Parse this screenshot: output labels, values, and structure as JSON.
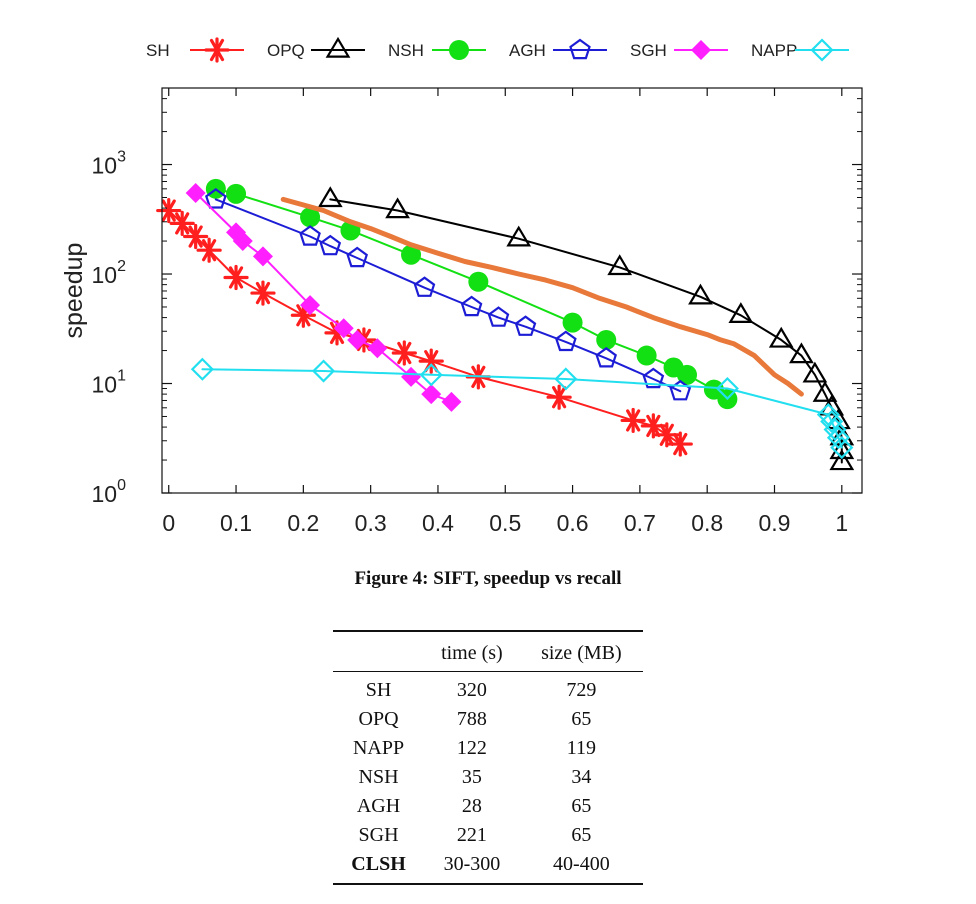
{
  "chart_data": {
    "type": "line",
    "xlabel": "",
    "ylabel": "speedup",
    "xlim": [
      -0.01,
      1.03
    ],
    "ylim": [
      1,
      5000
    ],
    "yscale": "log",
    "x_ticks": [
      "0",
      "0.1",
      "0.2",
      "0.3",
      "0.4",
      "0.5",
      "0.6",
      "0.7",
      "0.8",
      "0.9",
      "1"
    ],
    "y_ticks": [
      {
        "base": "10",
        "exp": "0"
      },
      {
        "base": "10",
        "exp": "1"
      },
      {
        "base": "10",
        "exp": "2"
      },
      {
        "base": "10",
        "exp": "3"
      }
    ],
    "legend_position": "top",
    "grid": false,
    "series": [
      {
        "name": "SH",
        "color": "#ff1f1f",
        "marker": "asterisk",
        "x": [
          0.0,
          0.02,
          0.04,
          0.06,
          0.1,
          0.14,
          0.2,
          0.25,
          0.29,
          0.35,
          0.39,
          0.46,
          0.58,
          0.69,
          0.72,
          0.74,
          0.76
        ],
        "y": [
          380,
          290,
          220,
          165,
          93,
          67,
          42,
          29,
          25,
          19,
          16,
          11.5,
          7.5,
          4.6,
          4.1,
          3.4,
          2.8
        ]
      },
      {
        "name": "OPQ",
        "color": "#000000",
        "marker": "triangle",
        "x": [
          0.24,
          0.34,
          0.52,
          0.67,
          0.79,
          0.85,
          0.91,
          0.94,
          0.96,
          0.975,
          0.985,
          0.995,
          1.0,
          1.0,
          1.0
        ],
        "y": [
          480,
          380,
          210,
          115,
          62,
          42,
          25,
          18,
          12,
          8,
          6,
          4.5,
          3.2,
          2.4,
          1.9
        ]
      },
      {
        "name": "NSH",
        "color": "#13e013",
        "marker": "circle",
        "x": [
          0.07,
          0.1,
          0.21,
          0.27,
          0.36,
          0.46,
          0.6,
          0.65,
          0.71,
          0.75,
          0.77,
          0.81,
          0.83
        ],
        "y": [
          600,
          540,
          330,
          250,
          150,
          85,
          36,
          25,
          18,
          14,
          12,
          8.8,
          7.2
        ]
      },
      {
        "name": "AGH",
        "color": "#1d1dd6",
        "marker": "pentagon",
        "x": [
          0.07,
          0.21,
          0.24,
          0.28,
          0.38,
          0.45,
          0.49,
          0.53,
          0.59,
          0.65,
          0.72,
          0.76
        ],
        "y": [
          480,
          220,
          180,
          140,
          75,
          50,
          40,
          33,
          24,
          17,
          11,
          8.5
        ]
      },
      {
        "name": "SGH",
        "color": "#ff1fff",
        "marker": "diamond",
        "x": [
          0.04,
          0.1,
          0.11,
          0.14,
          0.21,
          0.26,
          0.28,
          0.31,
          0.36,
          0.39,
          0.42
        ],
        "y": [
          550,
          240,
          200,
          145,
          52,
          32,
          25,
          21,
          11.5,
          8,
          6.8
        ]
      },
      {
        "name": "NAPP",
        "color": "#22dfef",
        "marker": "diamond-open",
        "x": [
          0.05,
          0.23,
          0.39,
          0.59,
          0.83,
          0.98,
          0.985,
          0.99,
          0.995,
          1.0
        ],
        "y": [
          13.5,
          13,
          12,
          11,
          9,
          5.2,
          4.5,
          3.8,
          3.2,
          2.6
        ]
      },
      {
        "name": "",
        "color": "#e8793a",
        "marker": "none",
        "x": [
          0.17,
          0.23,
          0.27,
          0.3,
          0.33,
          0.36,
          0.4,
          0.44,
          0.48,
          0.52,
          0.56,
          0.6,
          0.64,
          0.68,
          0.72,
          0.76,
          0.8,
          0.82,
          0.84,
          0.87,
          0.9,
          0.92,
          0.94
        ],
        "y": [
          480,
          380,
          300,
          260,
          220,
          185,
          155,
          130,
          115,
          100,
          88,
          75,
          60,
          50,
          40,
          33,
          28,
          25,
          23,
          18,
          12,
          10,
          8
        ]
      }
    ]
  },
  "caption": "Figure 4: SIFT, speedup vs recall",
  "table": {
    "headers": [
      "",
      "time (s)",
      "size (MB)"
    ],
    "rows": [
      [
        "SH",
        "320",
        "729"
      ],
      [
        "OPQ",
        "788",
        "65"
      ],
      [
        "NAPP",
        "122",
        "119"
      ],
      [
        "NSH",
        "35",
        "34"
      ],
      [
        "AGH",
        "28",
        "65"
      ],
      [
        "SGH",
        "221",
        "65"
      ],
      [
        "CLSH",
        "30-300",
        "40-400"
      ]
    ],
    "bold_row": 6
  }
}
